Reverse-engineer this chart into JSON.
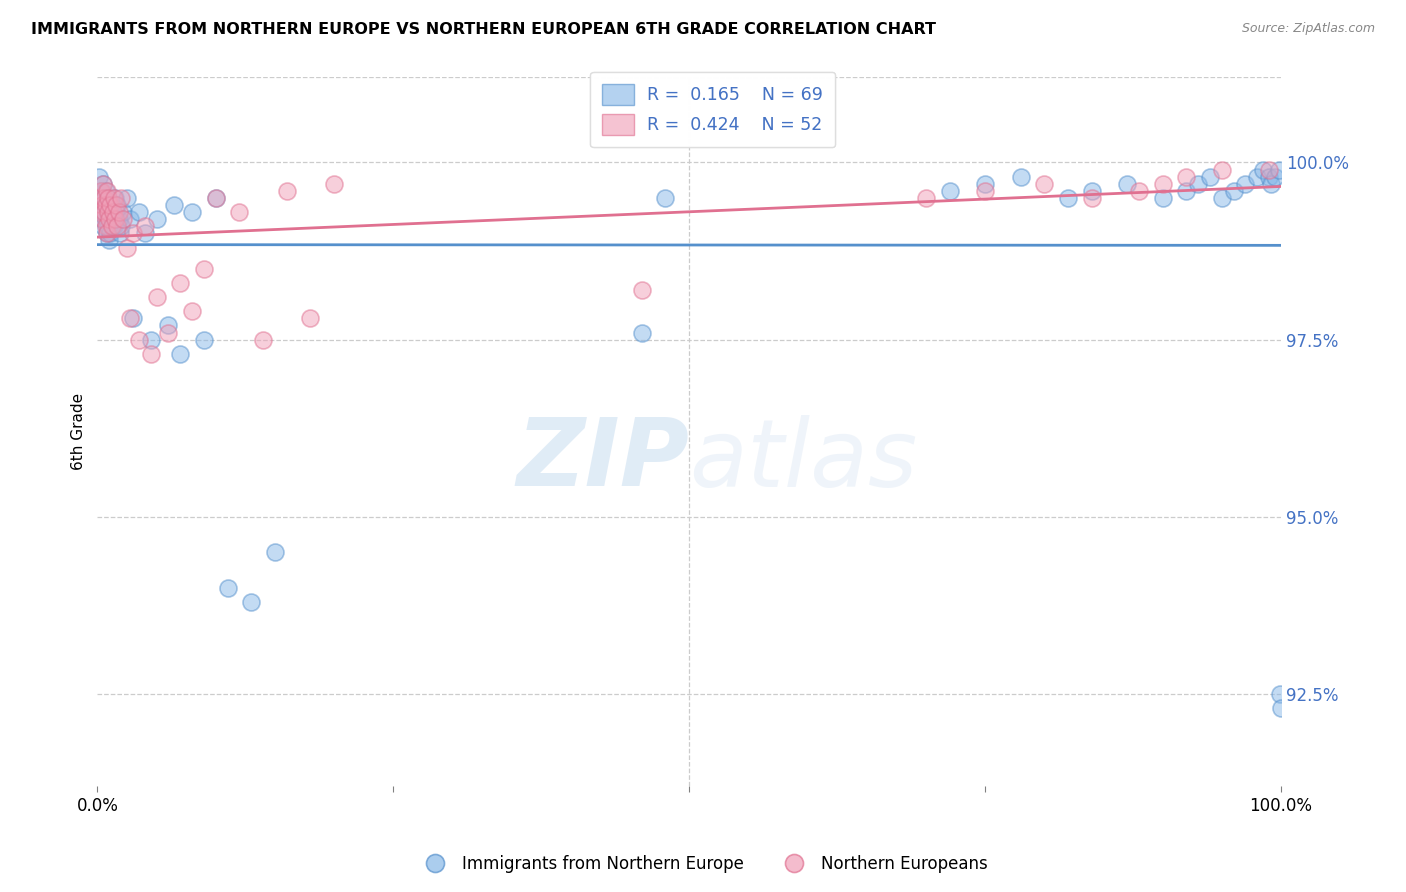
{
  "title": "IMMIGRANTS FROM NORTHERN EUROPE VS NORTHERN EUROPEAN 6TH GRADE CORRELATION CHART",
  "source": "Source: ZipAtlas.com",
  "ylabel": "6th Grade",
  "yticks": [
    92.5,
    95.0,
    97.5,
    100.0
  ],
  "ytick_labels": [
    "92.5%",
    "95.0%",
    "97.5%",
    "100.0%"
  ],
  "xlim": [
    0.0,
    1.0
  ],
  "ylim": [
    91.2,
    101.2
  ],
  "blue_R": 0.165,
  "blue_N": 69,
  "pink_R": 0.424,
  "pink_N": 52,
  "blue_color": "#88b8e8",
  "pink_color": "#f0a0b8",
  "blue_edge_color": "#5590cc",
  "pink_edge_color": "#e07090",
  "line_blue_color": "#5590cc",
  "line_pink_color": "#e07090",
  "legend_blue_label": "Immigrants from Northern Europe",
  "legend_pink_label": "Northern Europeans",
  "blue_scatter_x": [
    0.001,
    0.002,
    0.003,
    0.003,
    0.004,
    0.004,
    0.005,
    0.005,
    0.006,
    0.006,
    0.007,
    0.007,
    0.008,
    0.008,
    0.009,
    0.009,
    0.01,
    0.01,
    0.011,
    0.011,
    0.012,
    0.013,
    0.014,
    0.015,
    0.016,
    0.017,
    0.018,
    0.019,
    0.02,
    0.022,
    0.025,
    0.028,
    0.03,
    0.035,
    0.04,
    0.045,
    0.05,
    0.06,
    0.065,
    0.07,
    0.08,
    0.09,
    0.1,
    0.11,
    0.13,
    0.15,
    0.46,
    0.48,
    0.72,
    0.75,
    0.78,
    0.82,
    0.84,
    0.87,
    0.9,
    0.92,
    0.93,
    0.94,
    0.95,
    0.96,
    0.97,
    0.98,
    0.985,
    0.99,
    0.992,
    0.995,
    0.998,
    0.999,
    1.0
  ],
  "blue_scatter_y": [
    99.8,
    99.5,
    99.6,
    99.3,
    99.4,
    99.2,
    99.7,
    99.1,
    99.5,
    99.3,
    99.6,
    99.2,
    99.4,
    99.0,
    99.5,
    99.1,
    99.3,
    98.9,
    99.4,
    99.0,
    99.2,
    99.3,
    99.1,
    99.5,
    99.3,
    99.4,
    99.2,
    99.0,
    99.1,
    99.3,
    99.5,
    99.2,
    97.8,
    99.3,
    99.0,
    97.5,
    99.2,
    97.7,
    99.4,
    97.3,
    99.3,
    97.5,
    99.5,
    94.0,
    93.8,
    94.5,
    97.6,
    99.5,
    99.6,
    99.7,
    99.8,
    99.5,
    99.6,
    99.7,
    99.5,
    99.6,
    99.7,
    99.8,
    99.5,
    99.6,
    99.7,
    99.8,
    99.9,
    99.8,
    99.7,
    99.8,
    99.9,
    92.5,
    92.3
  ],
  "pink_scatter_x": [
    0.001,
    0.002,
    0.003,
    0.004,
    0.005,
    0.005,
    0.006,
    0.006,
    0.007,
    0.007,
    0.008,
    0.008,
    0.009,
    0.009,
    0.01,
    0.011,
    0.012,
    0.013,
    0.014,
    0.015,
    0.016,
    0.017,
    0.018,
    0.02,
    0.022,
    0.025,
    0.028,
    0.03,
    0.035,
    0.04,
    0.045,
    0.05,
    0.06,
    0.07,
    0.08,
    0.09,
    0.1,
    0.12,
    0.14,
    0.16,
    0.18,
    0.2,
    0.46,
    0.7,
    0.75,
    0.8,
    0.84,
    0.88,
    0.9,
    0.92,
    0.95,
    0.99
  ],
  "pink_scatter_y": [
    99.5,
    99.3,
    99.6,
    99.4,
    99.2,
    99.7,
    99.3,
    99.5,
    99.1,
    99.4,
    99.6,
    99.0,
    99.3,
    99.5,
    99.2,
    99.4,
    99.1,
    99.3,
    99.5,
    99.2,
    99.4,
    99.1,
    99.3,
    99.5,
    99.2,
    98.8,
    97.8,
    99.0,
    97.5,
    99.1,
    97.3,
    98.1,
    97.6,
    98.3,
    97.9,
    98.5,
    99.5,
    99.3,
    97.5,
    99.6,
    97.8,
    99.7,
    98.2,
    99.5,
    99.6,
    99.7,
    99.5,
    99.6,
    99.7,
    99.8,
    99.9,
    99.9
  ]
}
